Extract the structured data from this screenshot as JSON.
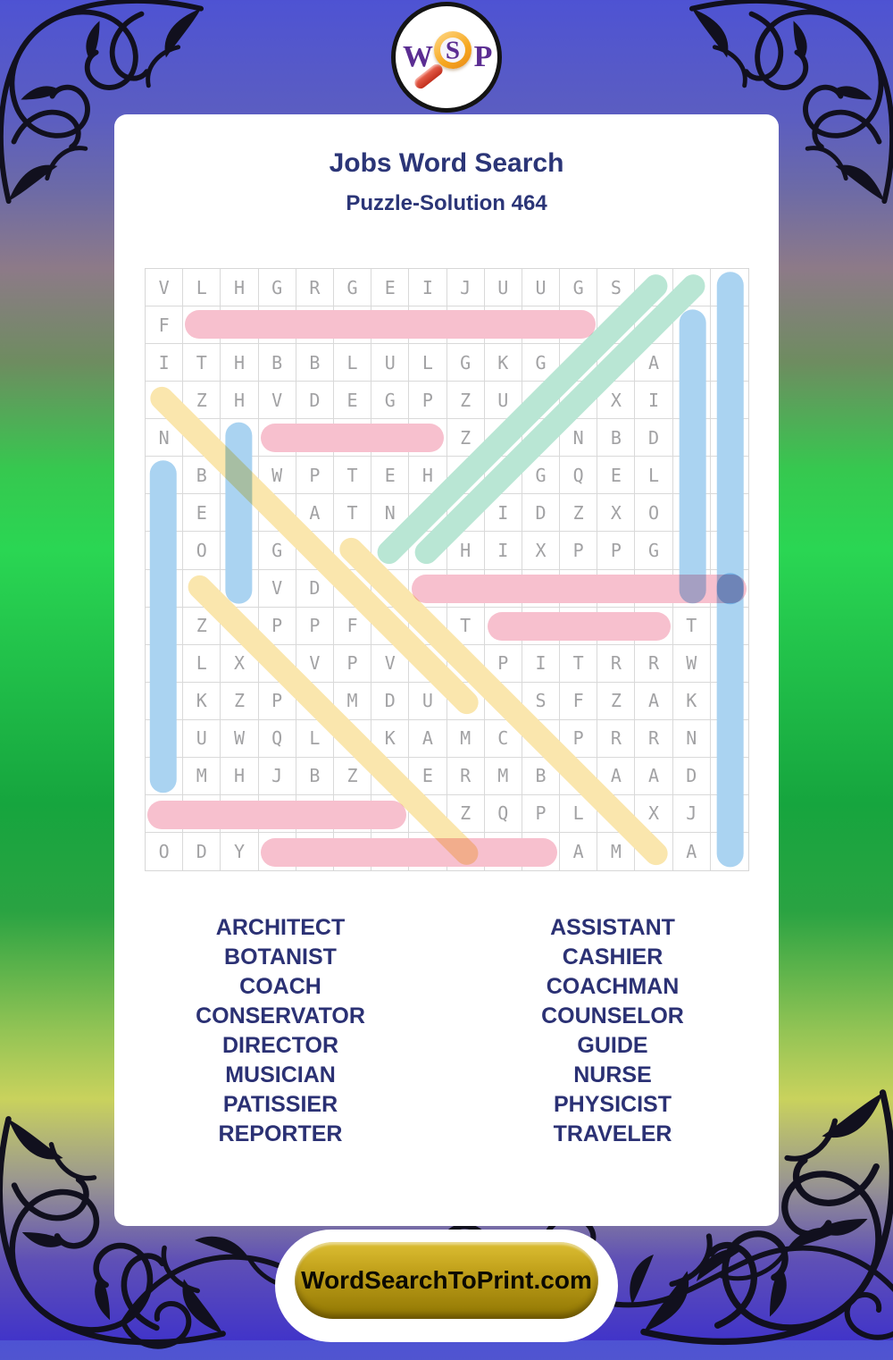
{
  "logo": {
    "w": "W",
    "s": "S",
    "p": "P"
  },
  "header": {
    "title": "Jobs Word Search",
    "subtitle": "Puzzle-Solution 464"
  },
  "grid": {
    "size": 16,
    "rows": [
      "VLHGRGEIJUUGSRNP",
      "FCONSERVATOREACH",
      "ITHBBLULGKGTIAOY",
      "CZHVDEGPZURCXIAS",
      "NONGUIDEZOINBDCI",
      "PBUWPTEHPSGQELHC",
      "AERNATNEUIDZXOMI",
      "TOSGSARMHIXPPGAS",
      "IBEVDERASSISTANT",
      "SZOPPFLCTCOACHTR",
      "SLXTVPVOHPITRRWA",
      "IKZPAMDURISFZAKV",
      "EUWQLNKAMCTPRRNE",
      "RMHJBZIERMBEAADL",
      "CASHIERSZQPLCXJE",
      "ODYDIRECTORAMTAR"
    ]
  },
  "colors": {
    "pink": "#f7c0ce",
    "blue": "#aad3f1",
    "teal": "#b9e6d4",
    "yellow": "#fae6ad",
    "navy_text": "#2b3174",
    "gold_button": "#c3a31c"
  },
  "solutions": [
    {
      "word": "CONSERVATOR",
      "row": 2,
      "col": 2,
      "dr": 0,
      "dc": 1,
      "len": 11,
      "color": "pink"
    },
    {
      "word": "GUIDE",
      "row": 5,
      "col": 4,
      "dr": 0,
      "dc": 1,
      "len": 5,
      "color": "pink"
    },
    {
      "word": "ASSISTANT",
      "row": 9,
      "col": 8,
      "dr": 0,
      "dc": 1,
      "len": 9,
      "color": "pink"
    },
    {
      "word": "COACH",
      "row": 10,
      "col": 10,
      "dr": 0,
      "dc": 1,
      "len": 5,
      "color": "pink"
    },
    {
      "word": "CASHIER",
      "row": 15,
      "col": 1,
      "dr": 0,
      "dc": 1,
      "len": 7,
      "color": "pink"
    },
    {
      "word": "DIRECTOR",
      "row": 16,
      "col": 4,
      "dr": 0,
      "dc": 1,
      "len": 8,
      "color": "pink"
    },
    {
      "word": "PATISSIER",
      "row": 6,
      "col": 1,
      "dr": 1,
      "dc": 0,
      "len": 9,
      "color": "blue"
    },
    {
      "word": "NURSE",
      "row": 5,
      "col": 3,
      "dr": 1,
      "dc": 0,
      "len": 5,
      "color": "blue"
    },
    {
      "word": "COACHMAN",
      "row": 2,
      "col": 15,
      "dr": 1,
      "dc": 0,
      "len": 8,
      "color": "blue"
    },
    {
      "word": "PHYSICIST",
      "row": 1,
      "col": 16,
      "dr": 1,
      "dc": 0,
      "len": 9,
      "color": "blue"
    },
    {
      "word": "TRAVELER",
      "row": 9,
      "col": 16,
      "dr": 1,
      "dc": 0,
      "len": 8,
      "color": "blue"
    },
    {
      "word": "MUSICIAN",
      "row": 8,
      "col": 8,
      "dr": -1,
      "dc": 1,
      "len": 8,
      "color": "teal"
    },
    {
      "word": "REPORTER",
      "row": 8,
      "col": 7,
      "dr": -1,
      "dc": 1,
      "len": 8,
      "color": "teal"
    },
    {
      "word": "COUNSELOR",
      "row": 4,
      "col": 1,
      "dr": 1,
      "dc": 1,
      "len": 9,
      "color": "yellow"
    },
    {
      "word": "BOTANIST",
      "row": 9,
      "col": 2,
      "dr": 1,
      "dc": 1,
      "len": 8,
      "color": "yellow"
    },
    {
      "word": "ARCHITECT",
      "row": 8,
      "col": 6,
      "dr": 1,
      "dc": 1,
      "len": 9,
      "color": "yellow"
    }
  ],
  "word_list": {
    "left": [
      "ARCHITECT",
      "BOTANIST",
      "COACH",
      "CONSERVATOR",
      "DIRECTOR",
      "MUSICIAN",
      "PATISSIER",
      "REPORTER"
    ],
    "right": [
      "ASSISTANT",
      "CASHIER",
      "COACHMAN",
      "COUNSELOR",
      "GUIDE",
      "NURSE",
      "PHYSICIST",
      "TRAVELER"
    ]
  },
  "footer": {
    "button_label": "WordSearchToPrint.com"
  }
}
